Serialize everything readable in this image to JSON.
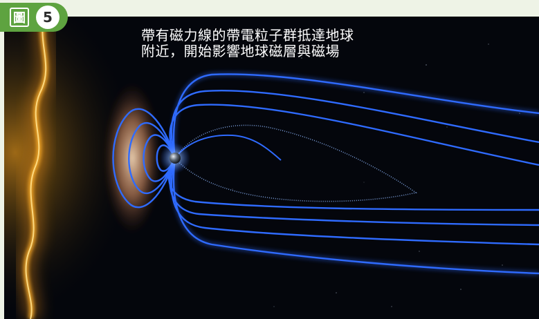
{
  "figure": {
    "label_char": "圖",
    "number": "5",
    "caption_lines": [
      "帶有磁力線的帶電粒子群抵達地球",
      "附近，開始影響地球磁層與磁場"
    ]
  },
  "colors": {
    "badge_green": "#5ea340",
    "page_background": "#eef3e6",
    "space_background": "#04060c",
    "field_lines_blue": "#2f6bff",
    "solar_glow_orange": "#ffa020"
  },
  "illustration": {
    "subject": "earth-magnetosphere-with-solar-wind",
    "icons": [
      "earth-icon",
      "magnetic-field-lines",
      "solar-wind-front"
    ]
  }
}
